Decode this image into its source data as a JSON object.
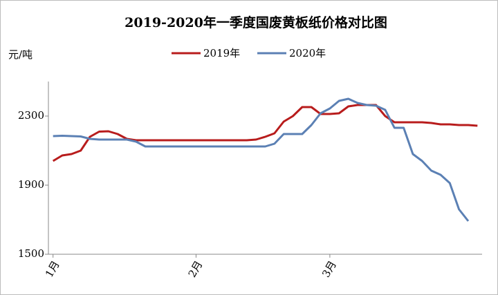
{
  "chart_data": {
    "type": "line",
    "title": "2019-2020年一季度国废黄板纸价格对比图",
    "y_label": "元/吨",
    "x": [
      0,
      2,
      4,
      6,
      8,
      10,
      12,
      14,
      16,
      18,
      20,
      22,
      24,
      26,
      28,
      30,
      32,
      34,
      36,
      38,
      40,
      42,
      44,
      46,
      48,
      50,
      52,
      54,
      56,
      58,
      60,
      62,
      64,
      66,
      68,
      70,
      72,
      74,
      76,
      78,
      80,
      82,
      84,
      86,
      88,
      90,
      92
    ],
    "xlim": [
      -1,
      93
    ],
    "xticks": [
      {
        "value": 0,
        "label": "1月"
      },
      {
        "value": 31,
        "label": "2月"
      },
      {
        "value": 60,
        "label": "3月"
      }
    ],
    "ylim": [
      1500,
      2500
    ],
    "yticks": [
      1500,
      1900,
      2300
    ],
    "legend": "top",
    "series": [
      {
        "name": "2019年",
        "color": "#b81c1c",
        "values": [
          2040,
          2072,
          2080,
          2100,
          2180,
          2210,
          2212,
          2196,
          2168,
          2160,
          2160,
          2160,
          2160,
          2160,
          2160,
          2160,
          2160,
          2160,
          2160,
          2160,
          2160,
          2160,
          2164,
          2180,
          2200,
          2268,
          2300,
          2352,
          2352,
          2312,
          2312,
          2316,
          2356,
          2364,
          2364,
          2364,
          2300,
          2264,
          2264,
          2264,
          2264,
          2260,
          2252,
          2252,
          2248,
          2248,
          2244
        ]
      },
      {
        "name": "2020年",
        "color": "#5b80b4",
        "values": [
          2184,
          2186,
          2184,
          2182,
          2168,
          2164,
          2164,
          2164,
          2164,
          2152,
          2124,
          2124,
          2124,
          2124,
          2124,
          2124,
          2124,
          2124,
          2124,
          2124,
          2124,
          2124,
          2124,
          2124,
          2140,
          2196,
          2196,
          2196,
          2248,
          2316,
          2344,
          2388,
          2400,
          2376,
          2364,
          2360,
          2336,
          2232,
          2232,
          2080,
          2040,
          1984,
          1960,
          1912,
          1760,
          1692,
          null
        ]
      }
    ]
  }
}
